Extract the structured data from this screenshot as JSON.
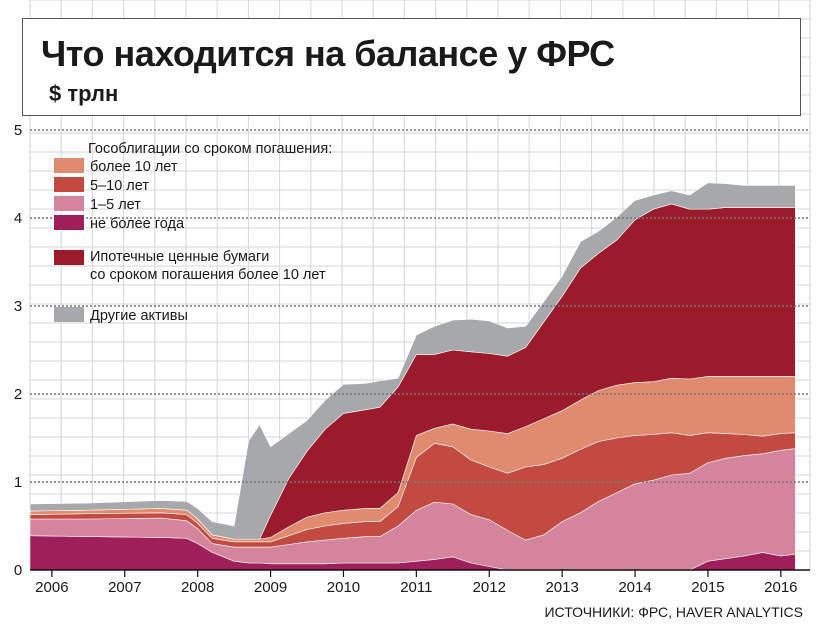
{
  "title": "Что находится на балансе у ФРС",
  "unit": "$ трлн",
  "source": "ИСТОЧНИКИ: ФРС, HAVER ANALYTICS",
  "legend": {
    "treasury_header": "Гособлигации со сроком погашения:",
    "mbs_line1": "Ипотечные ценные бумаги",
    "mbs_line2": "со сроком погашения более 10 лет"
  },
  "chart_data": {
    "type": "area",
    "stacked": true,
    "title": "Что находится на балансе у ФРС",
    "ylabel": "$ трлн",
    "xlabel": "",
    "xlim": [
      2005.7,
      2016.4
    ],
    "ylim": [
      0,
      5
    ],
    "xticks": [
      "2006",
      "2007",
      "2008",
      "2009",
      "2010",
      "2011",
      "2012",
      "2013",
      "2014",
      "2015",
      "2016"
    ],
    "yticks": [
      "0",
      "1",
      "2",
      "3",
      "4",
      "5"
    ],
    "grid": true,
    "legend_position": "top-left",
    "x": [
      2005.7,
      2006.5,
      2007.5,
      2007.85,
      2008.0,
      2008.2,
      2008.5,
      2008.7,
      2008.85,
      2009.0,
      2009.25,
      2009.5,
      2009.75,
      2010.0,
      2010.3,
      2010.5,
      2010.75,
      2011.0,
      2011.25,
      2011.5,
      2011.75,
      2012.0,
      2012.25,
      2012.5,
      2012.75,
      2013.0,
      2013.25,
      2013.5,
      2013.75,
      2014.0,
      2014.25,
      2014.5,
      2014.75,
      2015.0,
      2015.25,
      2015.5,
      2015.75,
      2016.0,
      2016.2
    ],
    "series": [
      {
        "name": "не более года",
        "color": "#9e1f5a",
        "values": [
          0.39,
          0.38,
          0.37,
          0.36,
          0.3,
          0.2,
          0.1,
          0.08,
          0.08,
          0.07,
          0.07,
          0.07,
          0.07,
          0.08,
          0.08,
          0.08,
          0.08,
          0.1,
          0.12,
          0.15,
          0.08,
          0.04,
          0,
          0,
          0,
          0,
          0,
          0,
          0,
          0,
          0,
          0,
          0,
          0.1,
          0.13,
          0.16,
          0.2,
          0.16,
          0.18
        ]
      },
      {
        "name": "1–5 лет",
        "color": "#d4849c",
        "values": [
          0.19,
          0.2,
          0.22,
          0.2,
          0.17,
          0.1,
          0.16,
          0.18,
          0.18,
          0.19,
          0.22,
          0.25,
          0.27,
          0.28,
          0.3,
          0.3,
          0.42,
          0.58,
          0.65,
          0.6,
          0.55,
          0.53,
          0.45,
          0.34,
          0.4,
          0.55,
          0.65,
          0.78,
          0.88,
          0.98,
          1.02,
          1.08,
          1.1,
          1.12,
          1.14,
          1.14,
          1.12,
          1.2,
          1.2
        ]
      },
      {
        "name": "5–10 лет",
        "color": "#c24a40",
        "values": [
          0.05,
          0.06,
          0.06,
          0.07,
          0.06,
          0.06,
          0.06,
          0.06,
          0.06,
          0.06,
          0.1,
          0.14,
          0.16,
          0.17,
          0.17,
          0.17,
          0.22,
          0.6,
          0.67,
          0.65,
          0.62,
          0.6,
          0.65,
          0.83,
          0.8,
          0.72,
          0.72,
          0.68,
          0.62,
          0.55,
          0.52,
          0.48,
          0.43,
          0.34,
          0.28,
          0.24,
          0.2,
          0.19,
          0.18
        ]
      },
      {
        "name": "более 10 лет",
        "color": "#e08a6e",
        "values": [
          0.04,
          0.04,
          0.05,
          0.05,
          0.05,
          0.04,
          0.03,
          0.03,
          0.03,
          0.05,
          0.1,
          0.14,
          0.15,
          0.15,
          0.15,
          0.15,
          0.16,
          0.25,
          0.17,
          0.26,
          0.35,
          0.41,
          0.45,
          0.46,
          0.52,
          0.54,
          0.56,
          0.58,
          0.6,
          0.6,
          0.6,
          0.62,
          0.64,
          0.64,
          0.65,
          0.66,
          0.68,
          0.65,
          0.64
        ]
      },
      {
        "name": "Ипотечные ценные бумаги со сроком погашения более 10 лет",
        "color": "#9b1b2c",
        "values": [
          0,
          0,
          0,
          0,
          0,
          0,
          0,
          0,
          0,
          0.25,
          0.55,
          0.75,
          0.95,
          1.1,
          1.12,
          1.15,
          1.2,
          0.92,
          0.84,
          0.84,
          0.88,
          0.88,
          0.88,
          0.9,
          1.1,
          1.3,
          1.5,
          1.56,
          1.65,
          1.85,
          1.96,
          1.98,
          1.93,
          1.9,
          1.92,
          1.92,
          1.92,
          1.92,
          1.92
        ]
      },
      {
        "name": "Другие активы",
        "color": "#a7a8ab",
        "values": [
          0.08,
          0.08,
          0.09,
          0.1,
          0.12,
          0.15,
          0.15,
          1.12,
          1.3,
          0.78,
          0.51,
          0.35,
          0.33,
          0.33,
          0.3,
          0.3,
          0.1,
          0.22,
          0.32,
          0.34,
          0.37,
          0.37,
          0.32,
          0.24,
          0.23,
          0.23,
          0.3,
          0.25,
          0.26,
          0.22,
          0.16,
          0.15,
          0.16,
          0.3,
          0.27,
          0.25,
          0.25,
          0.25,
          0.25
        ]
      }
    ]
  }
}
